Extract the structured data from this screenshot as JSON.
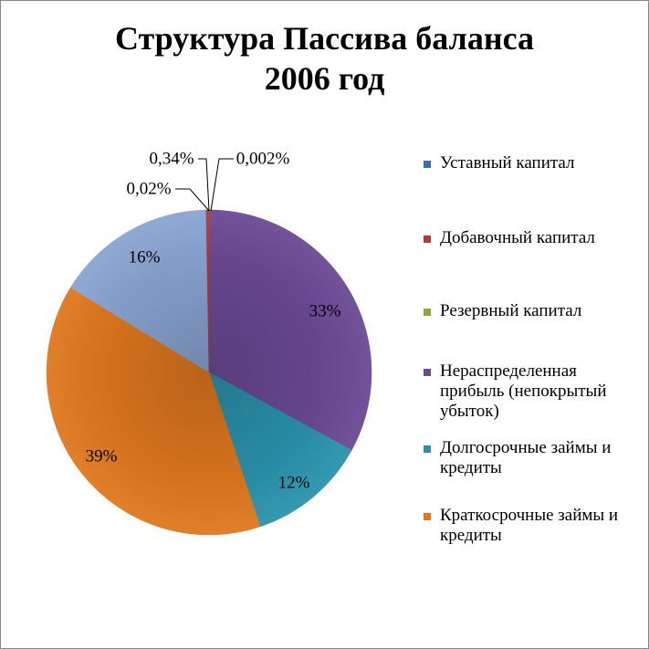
{
  "chart_data": {
    "type": "pie",
    "title_line1": "Структура Пассива баланса",
    "title_line2": "2006 год",
    "slices": [
      {
        "name": "Уставный капитал",
        "value": 0.02,
        "label": "0,02%",
        "color": "#3A6FB0"
      },
      {
        "name": "Добавочный капитал",
        "value": 0.34,
        "label": "0,34%",
        "color": "#B23A38"
      },
      {
        "name": "Резервный капитал",
        "value": 0.002,
        "label": "0,002%",
        "color": "#8BAA3E"
      },
      {
        "name": "Нераспределенная прибыль (непокрытый убыток)",
        "value": 33,
        "label": "33%",
        "color": "#6B4A95"
      },
      {
        "name": "Долгосрочные займы и кредиты",
        "value": 12,
        "label": "12%",
        "color": "#2A93AC"
      },
      {
        "name": "Краткосрочные займы и кредиты",
        "value": 39,
        "label": "39%",
        "color": "#E0781E"
      },
      {
        "name": "",
        "value": 16,
        "label": "16%",
        "color": "#8AA5D2"
      }
    ],
    "legend_position": "right"
  }
}
